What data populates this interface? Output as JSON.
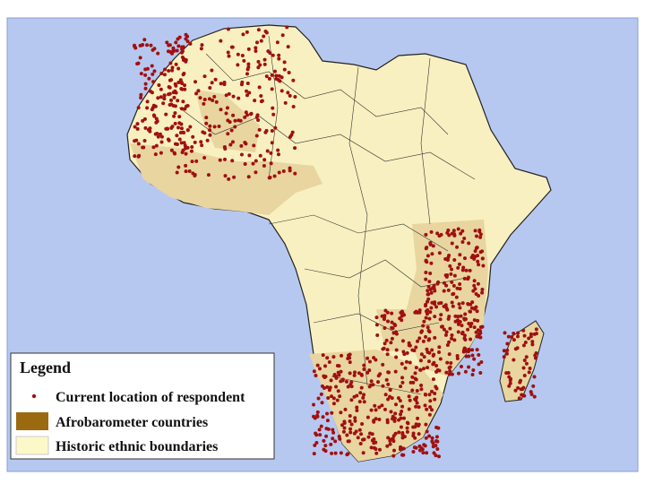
{
  "legend": {
    "title": "Legend",
    "items": [
      {
        "label": "Current location of respondent"
      },
      {
        "label": "Afrobarometer countries"
      },
      {
        "label": "Historic ethnic boundaries"
      }
    ]
  }
}
